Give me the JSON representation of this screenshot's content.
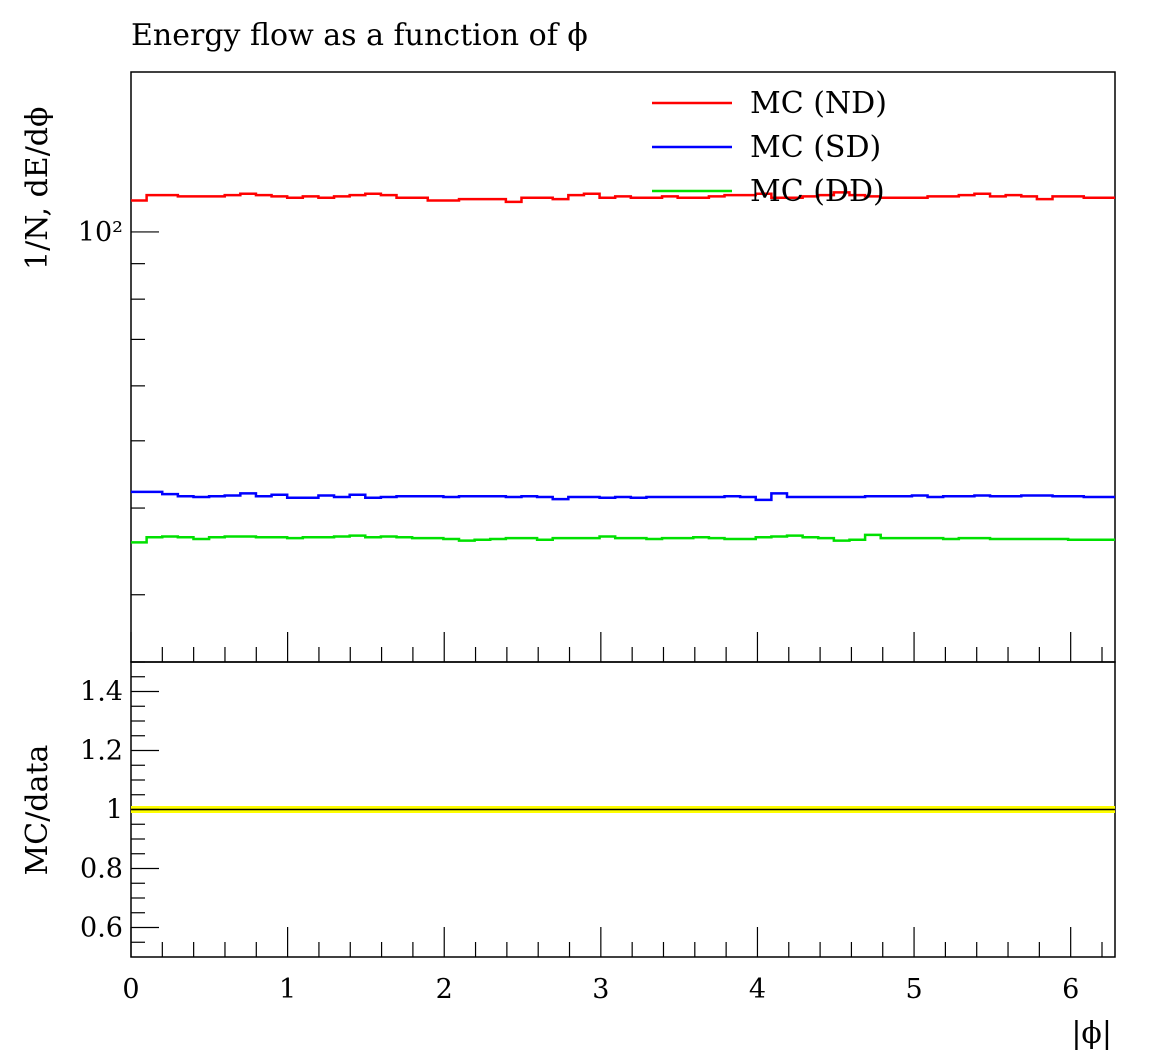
{
  "chart_data": {
    "type": "line",
    "title": "Energy flow as a function of ϕ",
    "xlabel": "|ϕ|",
    "xlim": [
      0,
      6.283
    ],
    "x_ticks": [
      "0",
      "1",
      "2",
      "3",
      "4",
      "5",
      "6"
    ],
    "main": {
      "ylabel": "1/N, dE/dϕ",
      "yscale": "log",
      "ylim": [
        24,
        170
      ],
      "y_tick_labels": [
        {
          "value": 100,
          "label": "10²"
        }
      ],
      "n_bins": 63,
      "series": [
        {
          "name": "MC (ND)",
          "color": "#ff0000",
          "values": [
            111,
            113,
            113,
            112.5,
            112.5,
            112.5,
            113,
            113.5,
            113,
            112.5,
            112,
            112.5,
            112,
            112.5,
            113,
            113.5,
            113,
            112,
            112,
            111,
            111,
            111.5,
            111.5,
            111.5,
            110.5,
            112,
            112,
            111.5,
            113,
            113.5,
            112,
            112.5,
            112,
            112,
            112.5,
            112,
            112,
            112.5,
            113,
            113,
            113.5,
            112,
            112,
            112.5,
            113,
            114,
            113,
            112.5,
            112,
            112,
            112,
            112.5,
            112.5,
            113,
            113.5,
            112.5,
            113,
            112.5,
            111.5,
            112.5,
            112.5,
            112,
            112
          ]
        },
        {
          "name": "MC (SD)",
          "color": "#0000ff",
          "values": [
            42.2,
            42.2,
            41.9,
            41.6,
            41.5,
            41.6,
            41.7,
            42,
            41.6,
            41.8,
            41.4,
            41.4,
            41.7,
            41.5,
            41.8,
            41.4,
            41.5,
            41.6,
            41.6,
            41.6,
            41.5,
            41.6,
            41.6,
            41.6,
            41.5,
            41.6,
            41.5,
            41.2,
            41.5,
            41.5,
            41.4,
            41.5,
            41.4,
            41.5,
            41.5,
            41.5,
            41.5,
            41.5,
            41.6,
            41.5,
            41.1,
            42,
            41.5,
            41.5,
            41.5,
            41.5,
            41.5,
            41.6,
            41.6,
            41.6,
            41.7,
            41.5,
            41.6,
            41.6,
            41.7,
            41.6,
            41.6,
            41.7,
            41.7,
            41.6,
            41.6,
            41.5,
            41.5
          ]
        },
        {
          "name": "MC (DD)",
          "color": "#00e000",
          "values": [
            35.7,
            36.3,
            36.4,
            36.3,
            36.1,
            36.3,
            36.4,
            36.4,
            36.3,
            36.3,
            36.2,
            36.3,
            36.3,
            36.4,
            36.5,
            36.3,
            36.4,
            36.3,
            36.2,
            36.2,
            36.1,
            35.9,
            36,
            36.1,
            36.2,
            36.2,
            36,
            36.2,
            36.2,
            36.2,
            36.4,
            36.2,
            36.2,
            36.1,
            36.2,
            36.2,
            36.3,
            36.2,
            36.1,
            36.1,
            36.3,
            36.4,
            36.5,
            36.3,
            36.2,
            35.9,
            36,
            36.6,
            36.2,
            36.2,
            36.2,
            36.2,
            36.1,
            36.2,
            36.2,
            36.1,
            36.1,
            36.1,
            36.1,
            36.1,
            36,
            36,
            36
          ]
        }
      ]
    },
    "ratio": {
      "ylabel": "MC/data",
      "ylim": [
        0.5,
        1.5
      ],
      "y_ticks": [
        "0.6",
        "0.8",
        "1",
        "1.2",
        "1.4"
      ],
      "reference_value": 1.0,
      "band_color": "#ffff00"
    },
    "legend": {
      "position": "top-right"
    }
  }
}
